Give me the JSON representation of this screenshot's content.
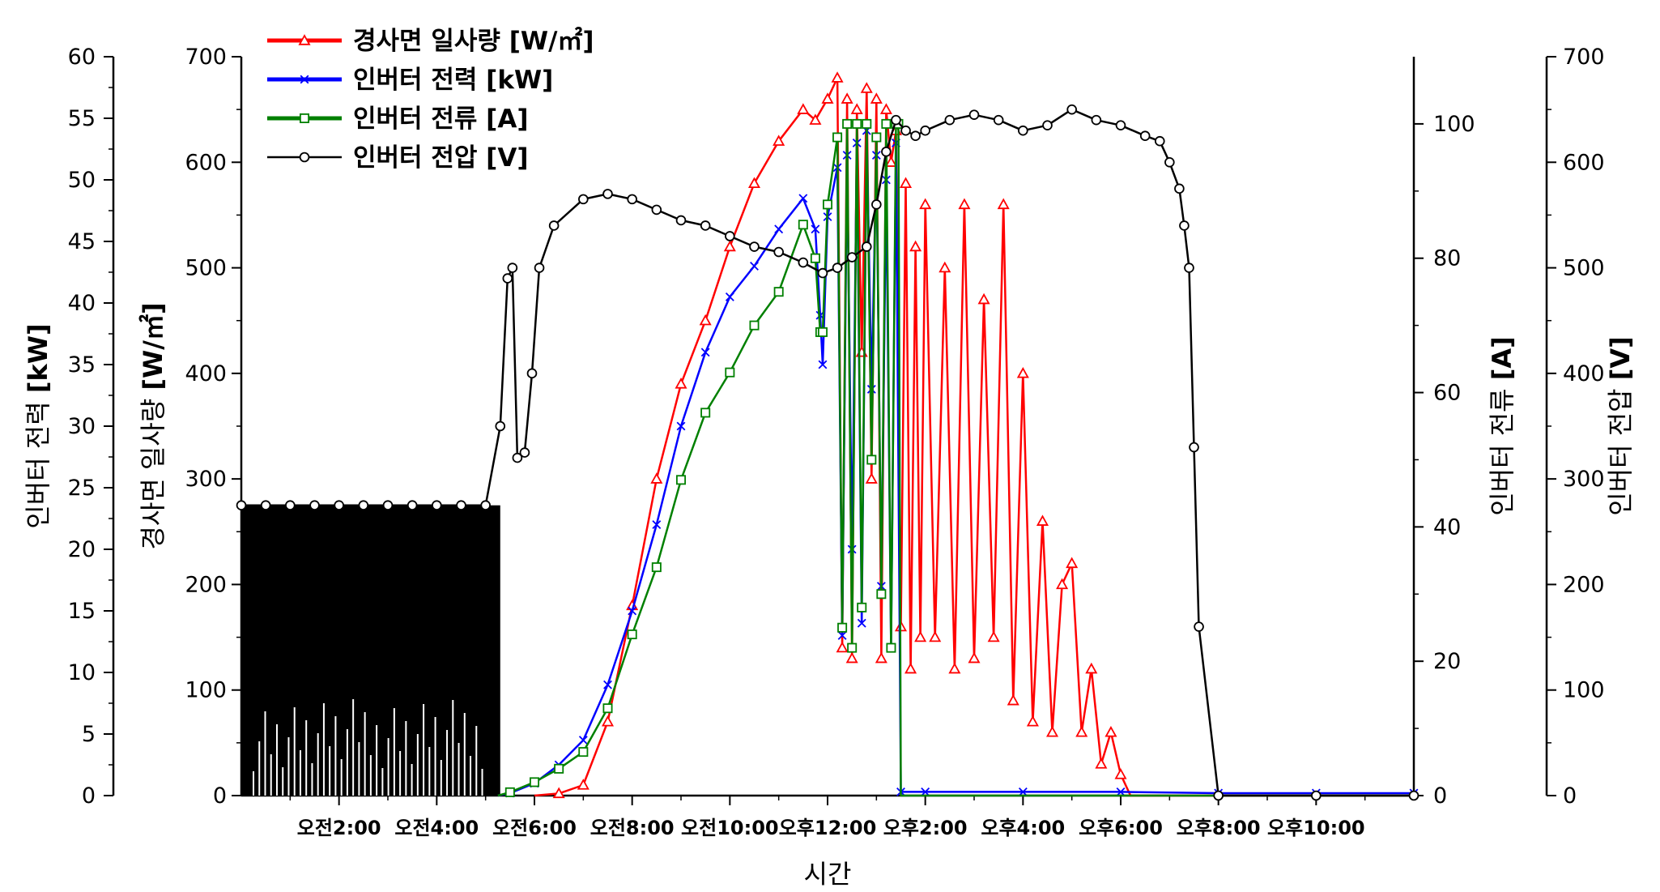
{
  "chart_data": {
    "type": "line",
    "xlabel": "시간",
    "x_range_hours": [
      0,
      24
    ],
    "x_ticks": [
      {
        "hour": 2,
        "label": "오전2:00"
      },
      {
        "hour": 4,
        "label": "오전4:00"
      },
      {
        "hour": 6,
        "label": "오전6:00"
      },
      {
        "hour": 8,
        "label": "오전8:00"
      },
      {
        "hour": 10,
        "label": "오전10:00"
      },
      {
        "hour": 12,
        "label": "오후12:00"
      },
      {
        "hour": 14,
        "label": "오후2:00"
      },
      {
        "hour": 16,
        "label": "오후4:00"
      },
      {
        "hour": 18,
        "label": "오후6:00"
      },
      {
        "hour": 20,
        "label": "오후8:00"
      },
      {
        "hour": 22,
        "label": "오후10:00"
      }
    ],
    "axes": {
      "power": {
        "label_main": "인버터 전력 ",
        "label_unit": "[kW]",
        "range": [
          0,
          60
        ],
        "ticks": [
          0,
          5,
          10,
          15,
          20,
          25,
          30,
          35,
          40,
          45,
          50,
          55,
          60
        ]
      },
      "irradiance": {
        "label_main": "경사면 일사량 ",
        "label_unit": "[W/㎡]",
        "range": [
          0,
          700
        ],
        "ticks": [
          0,
          100,
          200,
          300,
          400,
          500,
          600,
          700
        ]
      },
      "current": {
        "label_main": "인버터 전류 ",
        "label_unit": "[A]",
        "range": [
          0,
          110
        ],
        "ticks": [
          0,
          20,
          40,
          60,
          80,
          100
        ]
      },
      "voltage": {
        "label_main": "인버터 전압 ",
        "label_unit": "[V]",
        "range": [
          0,
          700
        ],
        "ticks": [
          0,
          100,
          200,
          300,
          400,
          500,
          600,
          700
        ]
      }
    },
    "legend_position": "top-left",
    "series": [
      {
        "name": "경사면 일사량 [W/㎡]",
        "axis": "irradiance",
        "color": "#ff0000",
        "marker": "triangle",
        "x": [
          6.0,
          6.5,
          7.0,
          7.5,
          8.0,
          8.5,
          9.0,
          9.5,
          10.0,
          10.5,
          11.0,
          11.5,
          11.75,
          12.0,
          12.2,
          12.3,
          12.4,
          12.5,
          12.6,
          12.7,
          12.8,
          12.9,
          13.0,
          13.1,
          13.2,
          13.3,
          13.4,
          13.5,
          13.6,
          13.7,
          13.8,
          13.9,
          14.0,
          14.2,
          14.4,
          14.6,
          14.8,
          15.0,
          15.2,
          15.4,
          15.6,
          15.8,
          16.0,
          16.2,
          16.4,
          16.6,
          16.8,
          17.0,
          17.2,
          17.4,
          17.6,
          17.8,
          18.0,
          18.2,
          18.4,
          18.6,
          18.8,
          19.0,
          19.2,
          19.5,
          20.0,
          21.0,
          22.0,
          23.0,
          24.0
        ],
        "y": [
          0,
          2,
          10,
          70,
          180,
          300,
          390,
          450,
          520,
          580,
          620,
          650,
          640,
          660,
          680,
          140,
          660,
          130,
          650,
          420,
          670,
          300,
          660,
          130,
          650,
          600,
          630,
          160,
          580,
          120,
          520,
          150,
          560,
          150,
          500,
          120,
          560,
          130,
          470,
          150,
          560,
          90,
          400,
          70,
          260,
          60,
          200,
          220,
          60,
          120,
          30,
          60,
          20,
          0,
          0,
          0,
          0,
          0,
          0,
          0,
          0,
          0,
          0,
          0,
          0
        ]
      },
      {
        "name": "인버터 전력 [kW]",
        "axis": "power",
        "color": "#0000ff",
        "marker": "x",
        "x": [
          5.25,
          5.5,
          6.0,
          6.5,
          7.0,
          7.5,
          8.0,
          8.5,
          9.0,
          9.5,
          10.0,
          10.5,
          11.0,
          11.5,
          11.75,
          11.85,
          11.9,
          12.0,
          12.2,
          12.3,
          12.4,
          12.5,
          12.6,
          12.7,
          12.8,
          12.9,
          13.0,
          13.1,
          13.2,
          13.3,
          13.4,
          13.5,
          14.0,
          16.0,
          18.0,
          20.0,
          22.0,
          24.0
        ],
        "y": [
          0,
          0.2,
          1,
          2.5,
          4.5,
          9,
          15,
          22,
          30,
          36,
          40.5,
          43,
          46,
          48.5,
          46,
          39,
          35,
          47,
          51,
          13,
          52,
          20,
          53,
          14,
          54,
          33,
          52,
          17,
          50,
          12,
          53,
          0.3,
          0.3,
          0.3,
          0.3,
          0.2,
          0.2,
          0.2
        ]
      },
      {
        "name": "인버터 전류 [A]",
        "axis": "current",
        "color": "#008000",
        "marker": "square",
        "x": [
          5.25,
          5.5,
          6.0,
          6.5,
          7.0,
          7.5,
          8.0,
          8.5,
          9.0,
          9.5,
          10.0,
          10.5,
          11.0,
          11.5,
          11.75,
          11.85,
          11.9,
          12.0,
          12.2,
          12.3,
          12.4,
          12.5,
          12.6,
          12.7,
          12.8,
          12.9,
          13.0,
          13.1,
          13.2,
          13.3,
          13.4,
          13.45,
          13.5,
          14.0,
          16.0,
          18.0,
          20.0,
          22.0,
          24.0
        ],
        "y": [
          0,
          0.5,
          2,
          4,
          6.5,
          13,
          24,
          34,
          47,
          57,
          63,
          70,
          75,
          85,
          80,
          69,
          69,
          88,
          98,
          25,
          100,
          22,
          100,
          28,
          100,
          50,
          98,
          30,
          100,
          22,
          100,
          100,
          0,
          0,
          0,
          0,
          0,
          0,
          0
        ]
      },
      {
        "name": "인버터 전압 [V]",
        "axis": "voltage",
        "color": "#000000",
        "marker": "circle",
        "x": [
          0.0,
          0.5,
          1.0,
          1.5,
          2.0,
          2.5,
          3.0,
          3.5,
          4.0,
          4.5,
          5.0,
          5.3,
          5.45,
          5.55,
          5.65,
          5.8,
          5.95,
          6.1,
          6.4,
          7.0,
          7.5,
          8.0,
          8.5,
          9.0,
          9.5,
          10.0,
          10.5,
          11.0,
          11.5,
          11.9,
          12.2,
          12.5,
          12.8,
          13.0,
          13.2,
          13.4,
          13.6,
          13.8,
          14.0,
          14.5,
          15.0,
          15.5,
          16.0,
          16.5,
          17.0,
          17.5,
          18.0,
          18.5,
          18.8,
          19.0,
          19.2,
          19.3,
          19.4,
          19.5,
          19.6,
          20.0,
          22.0,
          24.0
        ],
        "y": [
          275,
          275,
          275,
          275,
          275,
          275,
          275,
          275,
          275,
          275,
          275,
          350,
          490,
          500,
          320,
          325,
          400,
          500,
          540,
          565,
          570,
          565,
          555,
          545,
          540,
          530,
          520,
          515,
          505,
          495,
          500,
          510,
          520,
          560,
          610,
          640,
          630,
          625,
          630,
          640,
          645,
          640,
          630,
          635,
          650,
          640,
          635,
          625,
          620,
          600,
          575,
          540,
          500,
          330,
          160,
          0,
          0,
          0
        ]
      }
    ]
  }
}
